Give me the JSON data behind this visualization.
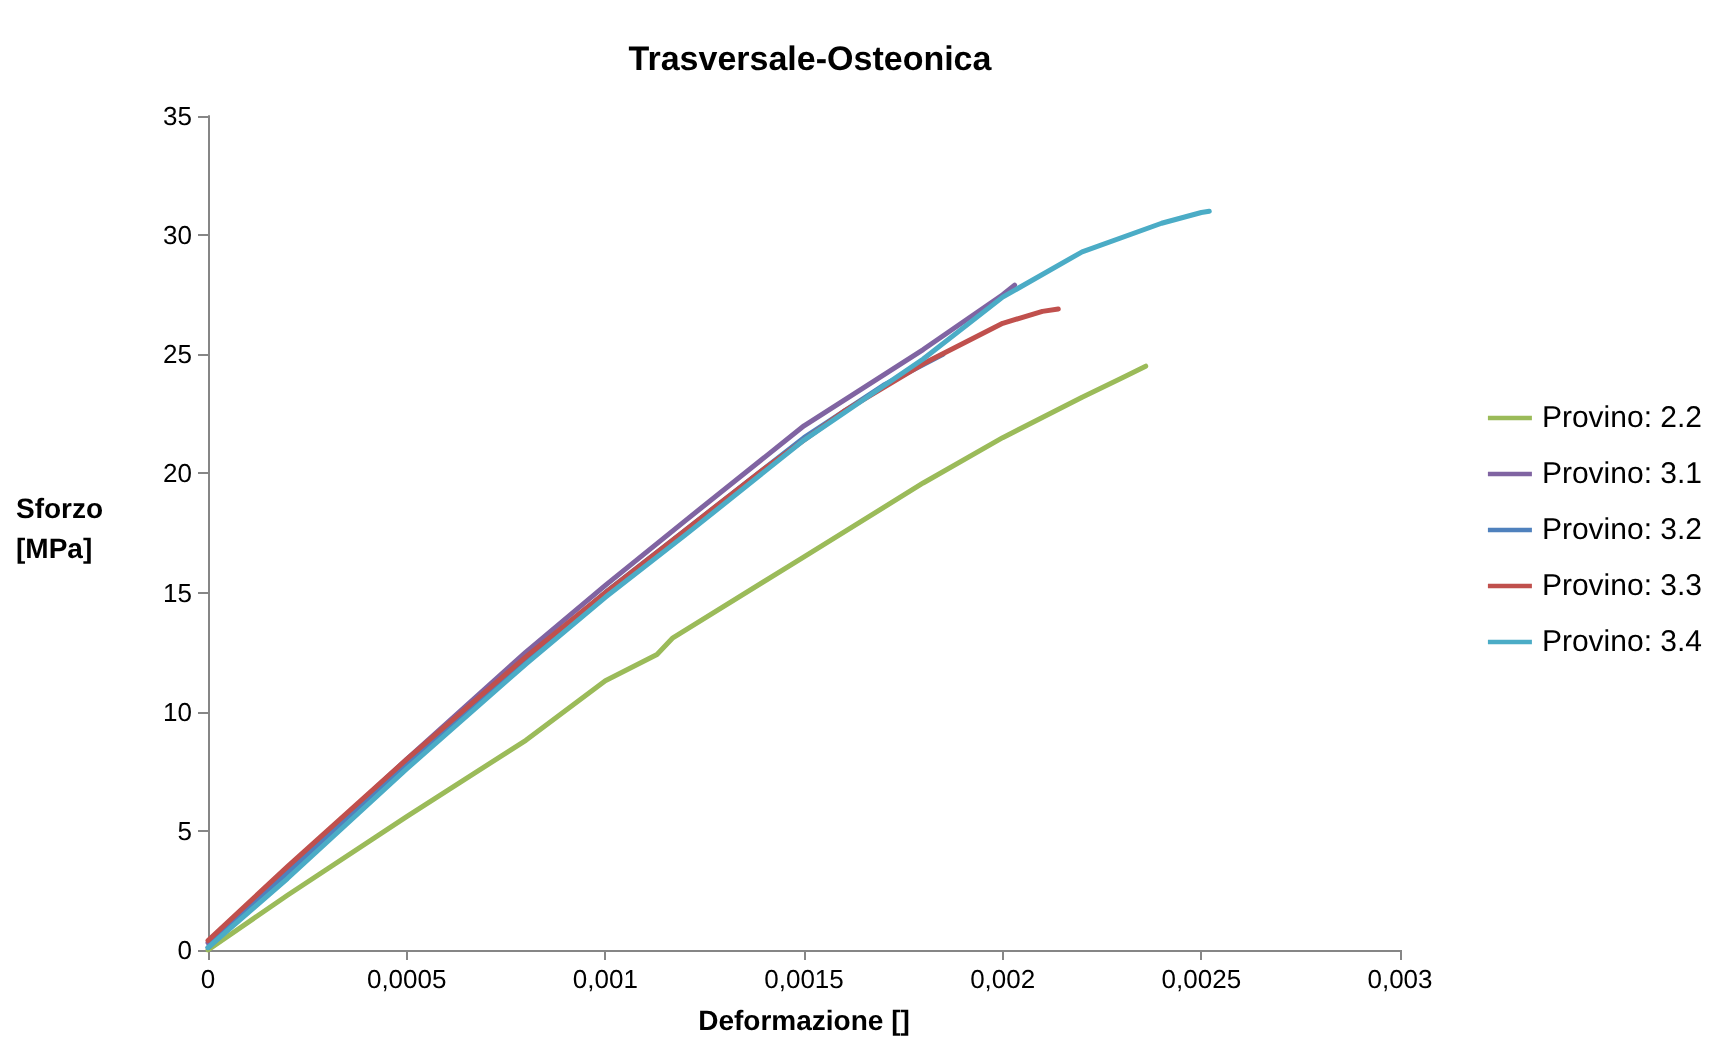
{
  "chart_data": {
    "type": "line",
    "title": "Trasversale-Osteonica",
    "xlabel": "Deformazione []",
    "ylabel": "Sforzo\n[MPa]",
    "xlim": [
      0,
      0.003
    ],
    "ylim": [
      0,
      35
    ],
    "xticks": [
      0,
      {
        "value": 0.0005,
        "label": "0,0005"
      },
      {
        "value": 0.001,
        "label": "0,001"
      },
      {
        "value": 0.0015,
        "label": "0,0015"
      },
      {
        "value": 0.002,
        "label": "0,002"
      },
      {
        "value": 0.0025,
        "label": "0,0025"
      },
      {
        "value": 0.003,
        "label": "0,003"
      }
    ],
    "yticks": [
      0,
      5,
      10,
      15,
      20,
      25,
      30,
      35
    ],
    "grid": false,
    "legend": "right",
    "marker": "none",
    "line_style": "solid",
    "series": [
      {
        "name": "Provino: 2.2",
        "color": "#9bbb59",
        "x": [
          0,
          0.0002,
          0.0005,
          0.0008,
          0.001,
          0.00113,
          0.00117,
          0.0015,
          0.0018,
          0.002,
          0.0022,
          0.0023,
          0.00236
        ],
        "values": [
          0,
          2.3,
          5.6,
          8.8,
          11.3,
          12.4,
          13.1,
          16.5,
          19.6,
          21.5,
          23.2,
          24.0,
          24.5
        ]
      },
      {
        "name": "Provino: 3.1",
        "color": "#8064a2",
        "x": [
          0,
          0.0002,
          0.0005,
          0.0008,
          0.001,
          0.0012,
          0.0015,
          0.0018,
          0.002,
          0.00203
        ],
        "values": [
          0.3,
          3.4,
          8.0,
          12.5,
          15.3,
          18.0,
          22.0,
          25.2,
          27.5,
          27.9
        ]
      },
      {
        "name": "Provino: 3.2",
        "color": "#4f81bd",
        "x": [
          0,
          0.0002,
          0.0005,
          0.0008,
          0.001,
          0.0012,
          0.0015,
          0.0017,
          0.00185
        ],
        "values": [
          0.1,
          3.2,
          7.8,
          12.2,
          15.0,
          17.6,
          21.5,
          23.7,
          25.0
        ]
      },
      {
        "name": "Provino: 3.3",
        "color": "#c0504d",
        "x": [
          0,
          0.0002,
          0.0005,
          0.0008,
          0.001,
          0.0012,
          0.0014,
          0.0016,
          0.0018,
          0.002,
          0.0021,
          0.00214
        ],
        "values": [
          0.4,
          3.5,
          8.0,
          12.3,
          15.0,
          17.6,
          20.2,
          22.6,
          24.6,
          26.3,
          26.8,
          26.9
        ]
      },
      {
        "name": "Provino: 3.4",
        "color": "#4bacc6",
        "x": [
          0,
          0.0002,
          0.0005,
          0.0008,
          0.001,
          0.0012,
          0.0015,
          0.0018,
          0.002,
          0.0022,
          0.0024,
          0.0025,
          0.00252
        ],
        "values": [
          0.1,
          3.0,
          7.6,
          12.0,
          14.8,
          17.4,
          21.4,
          24.8,
          27.4,
          29.3,
          30.5,
          30.95,
          31.0
        ]
      }
    ]
  }
}
